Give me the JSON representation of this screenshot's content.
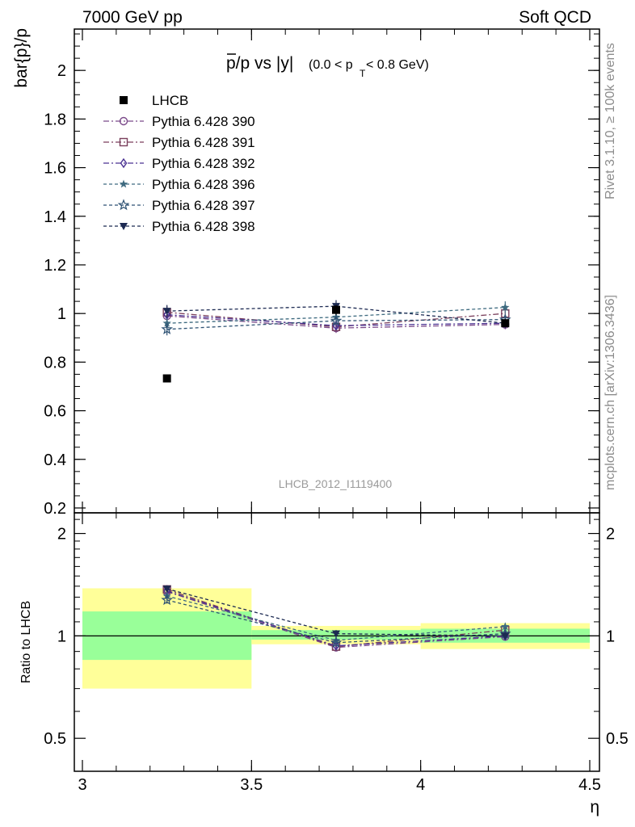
{
  "header": {
    "left": "7000 GeV pp",
    "right": "Soft QCD"
  },
  "side_labels": {
    "rivet": "Rivet 3.1.10, ≥ 100k events",
    "mcplots": "mcplots.cern.ch [arXiv:1306.3436]"
  },
  "watermark": "LHCB_2012_I1119400",
  "chart_data": [
    {
      "type": "scatter",
      "panel": "main",
      "title": "p̄/p vs |y|",
      "title_main": "p/p vs |y|",
      "title_sub": "(0.0 < p",
      "title_sub_index": "T",
      "title_sub_end": " < 0.8 GeV)",
      "ylabel": "bar{p}/p",
      "xlim": [
        3,
        4.5
      ],
      "ylim": [
        0.18,
        2.17
      ],
      "yticks": [
        0.2,
        0.4,
        0.6,
        0.8,
        1,
        1.2,
        1.4,
        1.6,
        1.8,
        2
      ],
      "ytick_labels": [
        "0.2",
        "0.4",
        "0.6",
        "0.8",
        "1",
        "1.2",
        "1.4",
        "1.6",
        "1.8",
        "2"
      ],
      "x": [
        3.25,
        3.75,
        4.25
      ],
      "series": [
        {
          "name": "LHCB",
          "marker": "square",
          "color": "#000000",
          "line": "none",
          "values": [
            0.733,
            1.015,
            0.96
          ],
          "errors": [
            0.0,
            0.02,
            0.015
          ]
        },
        {
          "name": "Pythia 6.428 390",
          "marker": "circle-open",
          "color": "#7b4a8a",
          "dash": "7 3 2 3",
          "values": [
            0.99,
            0.94,
            0.955
          ],
          "errors": [
            0.025,
            0.02,
            0.02
          ]
        },
        {
          "name": "Pythia 6.428 391",
          "marker": "square-open",
          "color": "#7a3f5c",
          "dash": "7 3 2 3",
          "values": [
            1.005,
            0.945,
            1.0
          ],
          "errors": [
            0.025,
            0.02,
            0.02
          ]
        },
        {
          "name": "Pythia 6.428 392",
          "marker": "diamond-open",
          "color": "#4a3192",
          "dash": "7 3 2 3",
          "values": [
            0.995,
            0.95,
            0.96
          ],
          "errors": [
            0.025,
            0.02,
            0.02
          ]
        },
        {
          "name": "Pythia 6.428 396",
          "marker": "star-filled",
          "color": "#3f6b80",
          "dash": "4 3",
          "values": [
            0.96,
            0.985,
            1.025
          ],
          "errors": [
            0.02,
            0.02,
            0.025
          ]
        },
        {
          "name": "Pythia 6.428 397",
          "marker": "star-open",
          "color": "#2e5273",
          "dash": "4 3",
          "values": [
            0.935,
            0.97,
            0.975
          ],
          "errors": [
            0.025,
            0.02,
            0.02
          ]
        },
        {
          "name": "Pythia 6.428 398",
          "marker": "triangle-down",
          "color": "#1c2a52",
          "dash": "4 3",
          "values": [
            1.01,
            1.03,
            0.96
          ],
          "errors": [
            0.025,
            0.025,
            0.02
          ]
        }
      ]
    },
    {
      "type": "scatter",
      "panel": "ratio",
      "ylabel": "Ratio to LHCB",
      "xlabel": "η",
      "xlim": [
        3,
        4.5
      ],
      "ylim": [
        0.4,
        2.3
      ],
      "y_scale": "log",
      "xticks": [
        3,
        3.5,
        4,
        4.5
      ],
      "xtick_labels": [
        "3",
        "3.5",
        "4",
        "4.5"
      ],
      "yticks": [
        0.5,
        1,
        2
      ],
      "ytick_labels": [
        "0.5",
        "1",
        "2"
      ],
      "bands": [
        {
          "x": [
            3.0,
            3.5
          ],
          "yellow": [
            0.7,
            1.38
          ],
          "green": [
            0.85,
            1.18
          ]
        },
        {
          "x": [
            3.5,
            4.0
          ],
          "yellow": [
            0.945,
            1.07
          ],
          "green": [
            0.975,
            1.04
          ]
        },
        {
          "x": [
            4.0,
            4.5
          ],
          "yellow": [
            0.915,
            1.09
          ],
          "green": [
            0.955,
            1.05
          ]
        }
      ],
      "x": [
        3.25,
        3.75,
        4.25
      ],
      "series": [
        {
          "name": "Pythia 6.428 390",
          "values": [
            1.35,
            0.925,
            0.995
          ]
        },
        {
          "name": "Pythia 6.428 391",
          "values": [
            1.37,
            0.93,
            1.04
          ]
        },
        {
          "name": "Pythia 6.428 392",
          "values": [
            1.355,
            0.935,
            1.0
          ]
        },
        {
          "name": "Pythia 6.428 396",
          "values": [
            1.31,
            0.97,
            1.065
          ]
        },
        {
          "name": "Pythia 6.428 397",
          "values": [
            1.275,
            0.955,
            1.015
          ]
        },
        {
          "name": "Pythia 6.428 398",
          "values": [
            1.375,
            1.015,
            1.0
          ]
        }
      ]
    }
  ]
}
